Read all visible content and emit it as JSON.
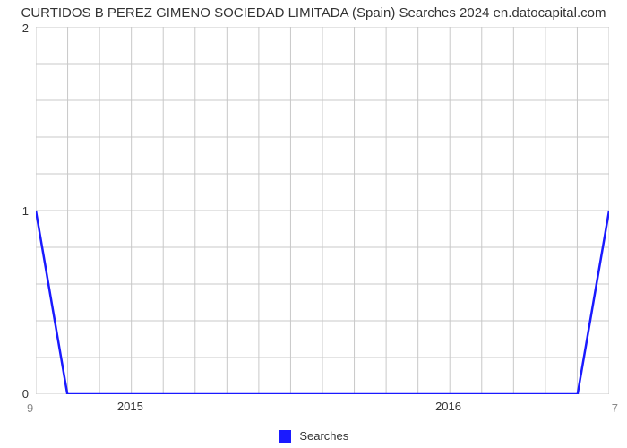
{
  "chart": {
    "type": "line",
    "title": "CURTIDOS B PEREZ GIMENO SOCIEDAD LIMITADA (Spain) Searches 2024 en.datocapital.com",
    "title_fontsize": 15,
    "title_color": "#333333",
    "background_color": "#ffffff",
    "plot_background": "#ffffff",
    "grid_color": "#c8c8c8",
    "grid_width": 1,
    "ylim": [
      0,
      2
    ],
    "y_ticks": [
      0,
      1,
      2
    ],
    "y_minor_ticks_between": 4,
    "x_major_labels": [
      "2015",
      "2016"
    ],
    "x_major_positions": [
      0.167,
      0.722
    ],
    "x_minor_count_between": 12,
    "corner_bottom_left": "9",
    "corner_bottom_right": "7",
    "line_color": "#1a1aff",
    "line_width": 2.5,
    "series_label": "Searches",
    "legend_swatch_color": "#1a1aff",
    "label_fontsize": 13,
    "label_color": "#333333",
    "corner_color": "#888888",
    "data_points": [
      {
        "x": 0.0,
        "y": 1.0
      },
      {
        "x": 0.055,
        "y": 0.0
      },
      {
        "x": 0.945,
        "y": 0.0
      },
      {
        "x": 1.0,
        "y": 1.0
      }
    ]
  }
}
